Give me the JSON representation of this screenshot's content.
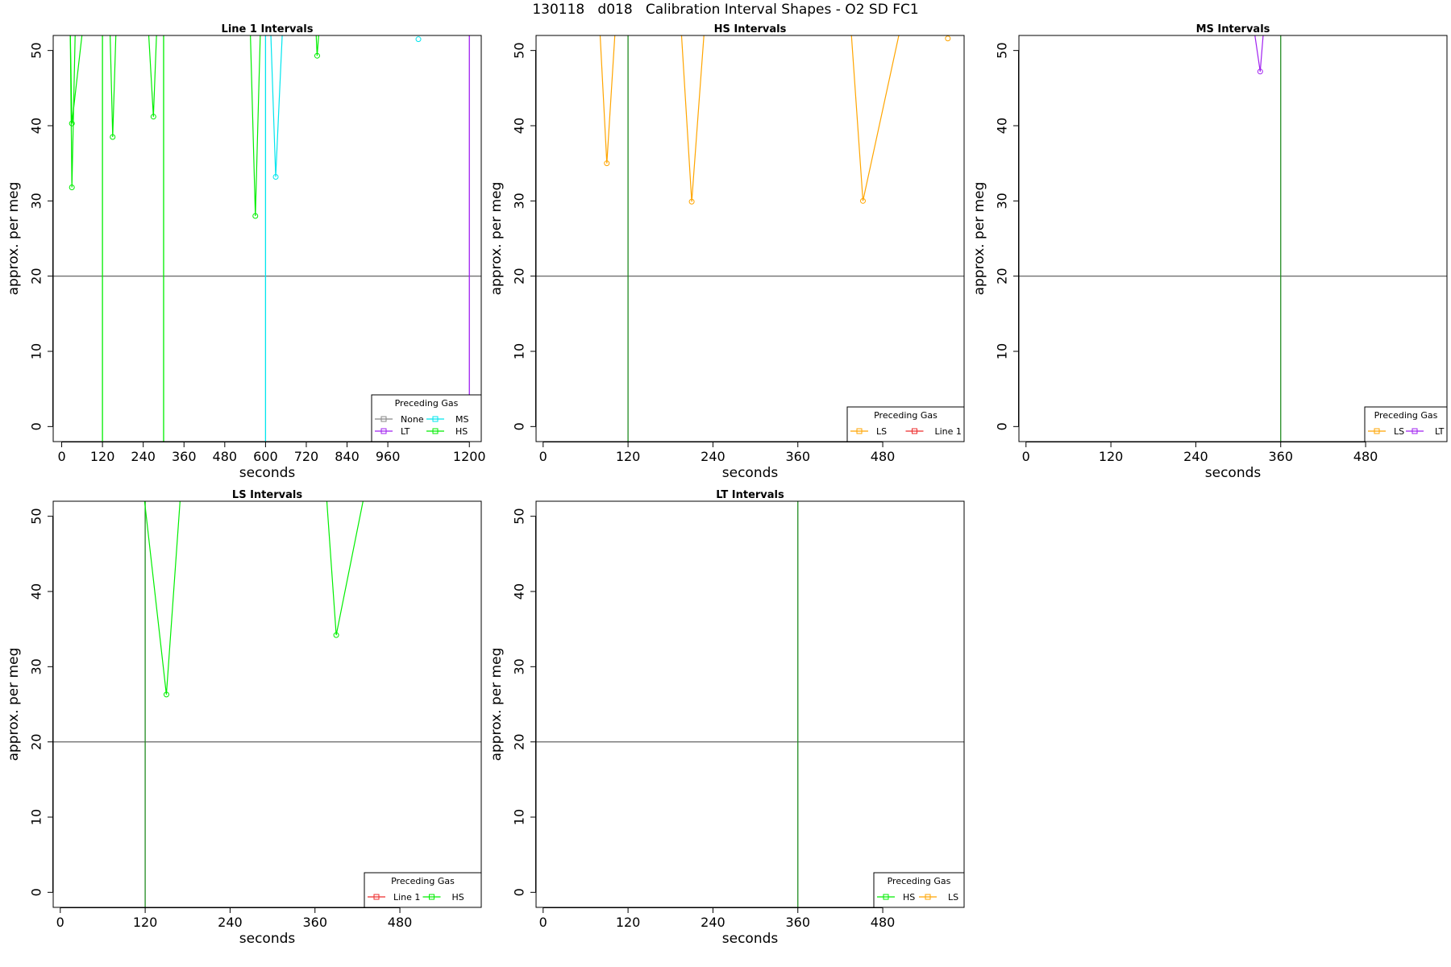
{
  "figure": {
    "title": "130118   d018   Calibration Interval Shapes - O2 SD FC1"
  },
  "colors": {
    "None": "#888888",
    "LT": "#a020f0",
    "MS": "#00e5ee",
    "HS": "#00ee00",
    "LS": "#ffa500",
    "Line 1": "#ee2c2c",
    "marker_line": "#228b22",
    "reference_line": "#555555"
  },
  "chart_data": [
    {
      "type": "line",
      "title": "Line 1 Intervals",
      "xlabel": "seconds",
      "ylabel": "approx. per meg",
      "xlim": [
        -25,
        1235
      ],
      "ylim": [
        -2,
        52
      ],
      "xticks": [
        0,
        120,
        240,
        360,
        480,
        600,
        720,
        840,
        960,
        1200
      ],
      "yticks": [
        0,
        10,
        20,
        30,
        40,
        50
      ],
      "hline": 20,
      "vlines": [
        {
          "x": 120,
          "series": "HS"
        },
        {
          "x": 300,
          "series": "HS"
        },
        {
          "x": 600,
          "series": "MS"
        },
        {
          "x": 1200,
          "series": "LT"
        }
      ],
      "legend": {
        "title": "Preceding Gas",
        "position": "bottom-right",
        "columns": 2,
        "entries": [
          "None",
          "MS",
          "LT",
          "HS"
        ]
      },
      "series": [
        {
          "series": "HS",
          "points": [
            [
              25,
              53
            ],
            [
              30,
              31.8
            ],
            [
              40,
              53
            ]
          ]
        },
        {
          "series": "HS",
          "points": [
            [
              25,
              53
            ],
            [
              30,
              40.3
            ],
            [
              62,
              53
            ]
          ]
        },
        {
          "series": "HS",
          "points": [
            [
              142,
              53
            ],
            [
              150,
              38.5
            ],
            [
              160,
              53
            ]
          ]
        },
        {
          "series": "HS",
          "points": [
            [
              255,
              53
            ],
            [
              270,
              41.2
            ],
            [
              280,
              53
            ]
          ]
        },
        {
          "series": "HS",
          "points": [
            [
              555,
              53
            ],
            [
              570,
              28.0
            ],
            [
              585,
              53
            ]
          ]
        },
        {
          "series": "MS",
          "points": [
            [
              615,
              53
            ],
            [
              630,
              33.2
            ],
            [
              650,
              53
            ]
          ]
        },
        {
          "series": "HS",
          "points": [
            [
              748,
              53
            ],
            [
              752,
              49.3
            ],
            [
              758,
              53
            ]
          ]
        },
        {
          "series": "MS",
          "points": [
            [
              1050,
              51.5
            ]
          ]
        }
      ]
    },
    {
      "type": "line",
      "title": "HS Intervals",
      "xlabel": "seconds",
      "ylabel": "approx. per meg",
      "xlim": [
        -10,
        595
      ],
      "ylim": [
        -2,
        52
      ],
      "xticks": [
        0,
        120,
        240,
        360,
        480
      ],
      "yticks": [
        0,
        10,
        20,
        30,
        40,
        50
      ],
      "hline": 20,
      "vlines": [
        {
          "x": 120,
          "series": "marker"
        }
      ],
      "legend": {
        "title": "Preceding Gas",
        "position": "bottom-right",
        "columns": 2,
        "entries": [
          "LS",
          "Line 1"
        ]
      },
      "series": [
        {
          "series": "LS",
          "points": [
            [
              80,
              53
            ],
            [
              90,
              35.0
            ],
            [
              102,
              53
            ]
          ]
        },
        {
          "series": "LS",
          "points": [
            [
              195,
              53
            ],
            [
              210,
              29.9
            ],
            [
              228,
              53
            ]
          ]
        },
        {
          "series": "LS",
          "points": [
            [
              435,
              53
            ],
            [
              452,
              30.0
            ],
            [
              505,
              53
            ]
          ]
        },
        {
          "series": "LS",
          "points": [
            [
              572,
              51.6
            ]
          ]
        }
      ]
    },
    {
      "type": "line",
      "title": "MS Intervals",
      "xlabel": "seconds",
      "ylabel": "approx. per meg",
      "xlim": [
        -10,
        595
      ],
      "ylim": [
        -2,
        52
      ],
      "xticks": [
        0,
        120,
        240,
        360,
        480
      ],
      "yticks": [
        0,
        10,
        20,
        30,
        40,
        50
      ],
      "hline": 20,
      "vlines": [
        {
          "x": 360,
          "series": "marker"
        }
      ],
      "legend": {
        "title": "Preceding Gas",
        "position": "bottom-right",
        "columns": 2,
        "entries": [
          "LS",
          "LT"
        ]
      },
      "series": [
        {
          "series": "LT",
          "points": [
            [
              322,
              53
            ],
            [
              331,
              47.2
            ],
            [
              336,
              53
            ]
          ]
        }
      ]
    },
    {
      "type": "line",
      "title": "LS Intervals",
      "xlabel": "seconds",
      "ylabel": "approx. per meg",
      "xlim": [
        -10,
        595
      ],
      "ylim": [
        -2,
        52
      ],
      "xticks": [
        0,
        120,
        240,
        360,
        480
      ],
      "yticks": [
        0,
        10,
        20,
        30,
        40,
        50
      ],
      "hline": 20,
      "vlines": [
        {
          "x": 120,
          "series": "marker"
        }
      ],
      "legend": {
        "title": "Preceding Gas",
        "position": "bottom-right",
        "columns": 2,
        "entries": [
          "Line 1",
          "HS"
        ]
      },
      "series": [
        {
          "series": "HS",
          "points": [
            [
              118,
              53
            ],
            [
              150,
              26.3
            ],
            [
              170,
              53
            ]
          ]
        },
        {
          "series": "HS",
          "points": [
            [
              376,
              53
            ],
            [
              390,
              34.2
            ],
            [
              430,
              53
            ]
          ]
        }
      ]
    },
    {
      "type": "line",
      "title": "LT Intervals",
      "xlabel": "seconds",
      "ylabel": "approx. per meg",
      "xlim": [
        -10,
        595
      ],
      "ylim": [
        -2,
        52
      ],
      "xticks": [
        0,
        120,
        240,
        360,
        480
      ],
      "yticks": [
        0,
        10,
        20,
        30,
        40,
        50
      ],
      "hline": 20,
      "vlines": [
        {
          "x": 360,
          "series": "marker"
        }
      ],
      "legend": {
        "title": "Preceding Gas",
        "position": "bottom-right",
        "columns": 2,
        "entries": [
          "HS",
          "LS"
        ]
      },
      "series": []
    }
  ]
}
